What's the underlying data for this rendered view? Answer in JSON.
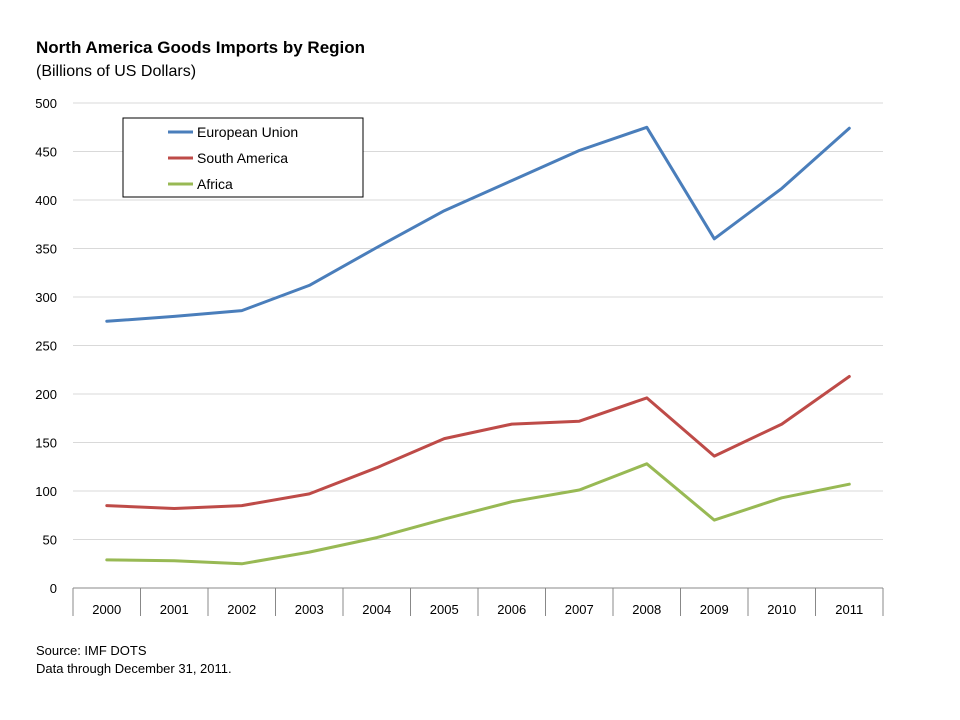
{
  "chart_data": {
    "type": "line",
    "title": "North America Goods Imports by Region",
    "subtitle": "(Billions of US Dollars)",
    "xlabel": "",
    "ylabel": "",
    "categories": [
      "2000",
      "2001",
      "2002",
      "2003",
      "2004",
      "2005",
      "2006",
      "2007",
      "2008",
      "2009",
      "2010",
      "2011"
    ],
    "ylim": [
      0,
      500
    ],
    "yticks": [
      0,
      50,
      100,
      150,
      200,
      250,
      300,
      350,
      400,
      450,
      500
    ],
    "grid": true,
    "legend_position": "top-left",
    "series": [
      {
        "name": "European Union",
        "color": "#4a7ebb",
        "values": [
          275,
          280,
          286,
          312,
          351,
          389,
          420,
          451,
          475,
          360,
          412,
          474
        ]
      },
      {
        "name": "South America",
        "color": "#be4b48",
        "values": [
          85,
          82,
          85,
          97,
          124,
          154,
          169,
          172,
          196,
          136,
          169,
          218
        ]
      },
      {
        "name": "Africa",
        "color": "#98b954",
        "values": [
          29,
          28,
          25,
          37,
          52,
          71,
          89,
          101,
          128,
          70,
          93,
          107
        ]
      }
    ]
  },
  "footer": {
    "source": "Source: IMF  DOTS",
    "note": "Data through December 31, 2011."
  }
}
